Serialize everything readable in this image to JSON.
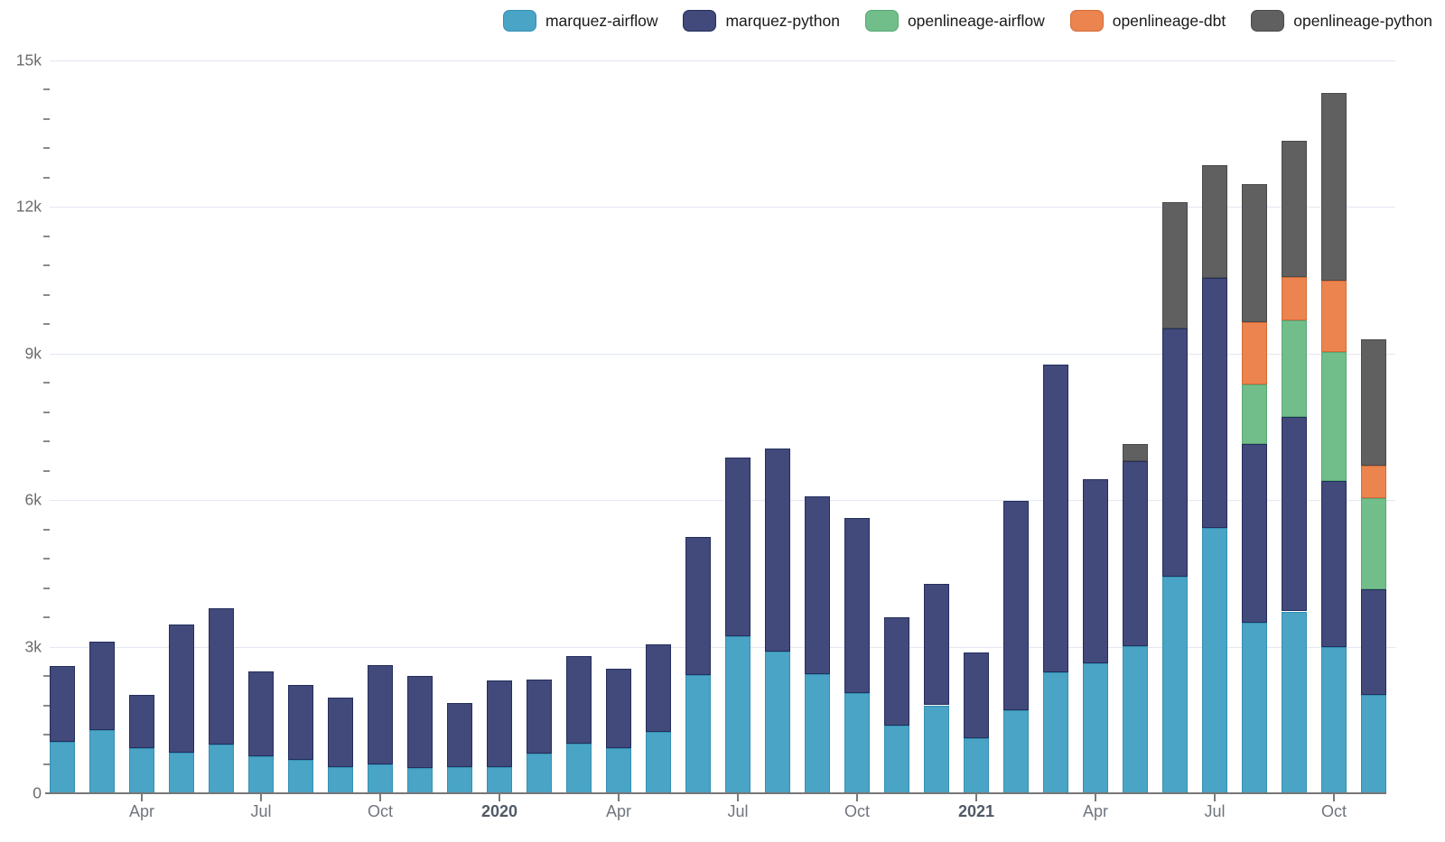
{
  "chart_data": {
    "type": "bar",
    "stacked": true,
    "grid": true,
    "legend_position": "top-right",
    "categories": [
      "2019-02",
      "2019-03",
      "2019-04",
      "2019-05",
      "2019-06",
      "2019-07",
      "2019-08",
      "2019-09",
      "2019-10",
      "2019-11",
      "2019-12",
      "2020-01",
      "2020-02",
      "2020-03",
      "2020-04",
      "2020-05",
      "2020-06",
      "2020-07",
      "2020-08",
      "2020-09",
      "2020-10",
      "2020-11",
      "2020-12",
      "2021-01",
      "2021-02",
      "2021-03",
      "2021-04",
      "2021-05",
      "2021-06",
      "2021-07",
      "2021-08",
      "2021-09",
      "2021-10",
      "2021-11"
    ],
    "series": [
      {
        "name": "marquez-airflow",
        "color": "#49a4c5",
        "border": "#3590b3",
        "values": [
          1050,
          1300,
          920,
          830,
          1000,
          760,
          680,
          540,
          590,
          510,
          540,
          540,
          810,
          1010,
          930,
          1250,
          2420,
          3220,
          2900,
          2440,
          2050,
          1390,
          1800,
          1120,
          1700,
          2480,
          2660,
          3010,
          4430,
          5430,
          3490,
          3720,
          2990,
          2010
        ]
      },
      {
        "name": "marquez-python",
        "color": "#424a7b",
        "border": "#232e5c",
        "values": [
          1550,
          1800,
          1100,
          2620,
          2790,
          1740,
          1530,
          1410,
          2040,
          1900,
          1300,
          1760,
          1510,
          1790,
          1620,
          1790,
          2820,
          3640,
          4160,
          3630,
          3580,
          2210,
          2480,
          1770,
          4280,
          6290,
          3770,
          3790,
          5070,
          5110,
          3660,
          3980,
          3400,
          2170
        ]
      },
      {
        "name": "openlineage-airflow",
        "color": "#71be8b",
        "border": "#58a775",
        "values": [
          0,
          0,
          0,
          0,
          0,
          0,
          0,
          0,
          0,
          0,
          0,
          0,
          0,
          0,
          0,
          0,
          0,
          0,
          0,
          0,
          0,
          0,
          0,
          0,
          0,
          0,
          0,
          0,
          0,
          0,
          1210,
          1970,
          2640,
          1850
        ]
      },
      {
        "name": "openlineage-dbt",
        "color": "#ec8450",
        "border": "#d56b35",
        "values": [
          0,
          0,
          0,
          0,
          0,
          0,
          0,
          0,
          0,
          0,
          0,
          0,
          0,
          0,
          0,
          0,
          0,
          0,
          0,
          0,
          0,
          0,
          0,
          0,
          0,
          0,
          0,
          0,
          0,
          0,
          1270,
          890,
          1460,
          670
        ]
      },
      {
        "name": "openlineage-python",
        "color": "#606060",
        "border": "#4a4a4a",
        "values": [
          0,
          0,
          0,
          0,
          0,
          0,
          0,
          0,
          0,
          0,
          0,
          0,
          0,
          0,
          0,
          0,
          0,
          0,
          0,
          0,
          0,
          0,
          0,
          0,
          0,
          0,
          0,
          340,
          2590,
          2310,
          2830,
          2790,
          3830,
          2580
        ]
      }
    ],
    "y_axis": {
      "min": 0,
      "max": 15000,
      "major_step": 3000,
      "minor_step": 600,
      "major_labels": [
        "0",
        "3k",
        "6k",
        "9k",
        "12k",
        "15k"
      ]
    },
    "x_ticks": [
      {
        "index": 2,
        "label": "Apr",
        "bold": false
      },
      {
        "index": 5,
        "label": "Jul",
        "bold": false
      },
      {
        "index": 8,
        "label": "Oct",
        "bold": false
      },
      {
        "index": 11,
        "label": "2020",
        "bold": true
      },
      {
        "index": 14,
        "label": "Apr",
        "bold": false
      },
      {
        "index": 17,
        "label": "Jul",
        "bold": false
      },
      {
        "index": 20,
        "label": "Oct",
        "bold": false
      },
      {
        "index": 23,
        "label": "2021",
        "bold": true
      },
      {
        "index": 26,
        "label": "Apr",
        "bold": false
      },
      {
        "index": 29,
        "label": "Jul",
        "bold": false
      },
      {
        "index": 32,
        "label": "Oct",
        "bold": false
      }
    ]
  }
}
